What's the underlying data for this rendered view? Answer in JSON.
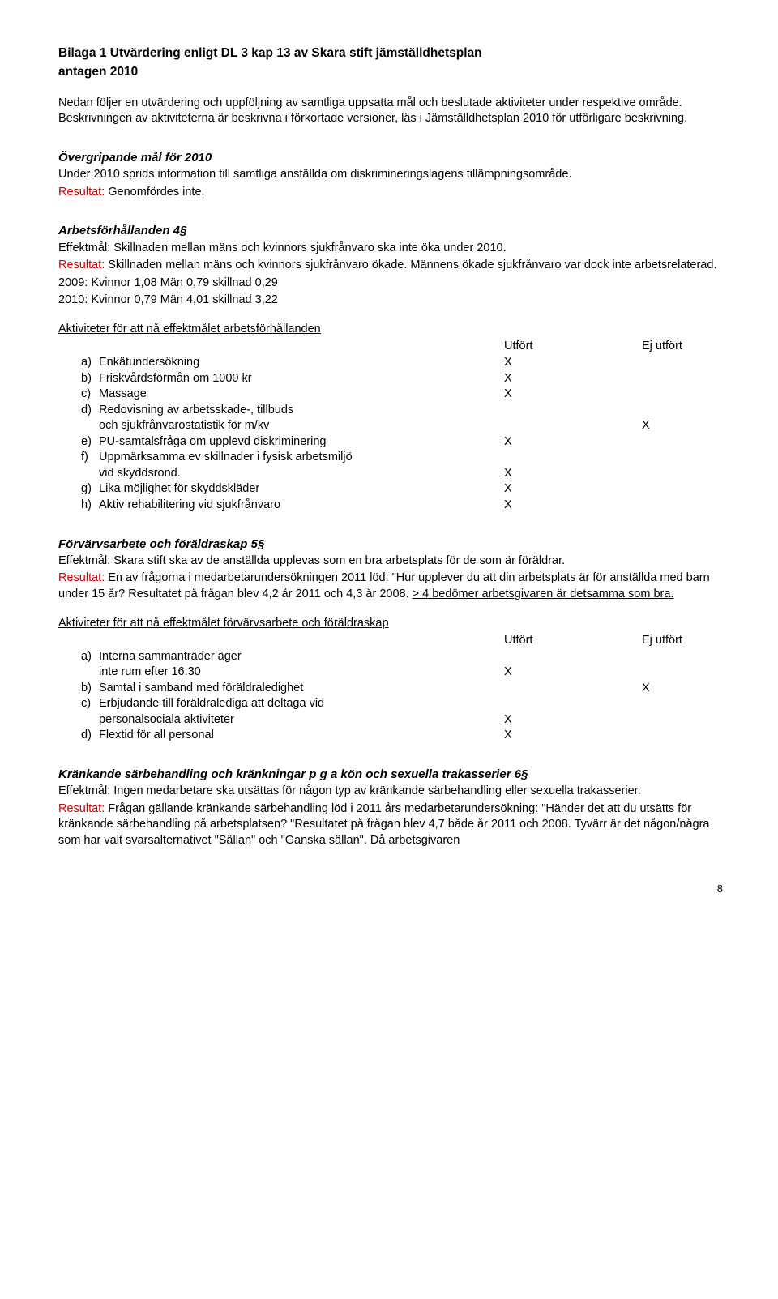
{
  "title_line1": "Bilaga 1 Utvärdering enligt DL 3 kap 13 av Skara stift jämställdhetsplan",
  "title_line2": "antagen 2010",
  "intro": "Nedan följer en utvärdering och uppföljning av samtliga uppsatta mål och beslutade aktiviteter under respektive område. Beskrivningen av aktiviteterna är beskrivna i förkortade versioner, läs i Jämställdhetsplan 2010 för utförligare beskrivning.",
  "s_over": {
    "head": "Övergripande mål för 2010",
    "body": "Under 2010 sprids information till samtliga anställda om diskrimineringslagens tillämpningsområde.",
    "res_label": "Resultat:",
    "res_text": " Genomfördes inte."
  },
  "s4": {
    "head": "Arbetsförhållanden 4§",
    "eff": "Effektmål: Skillnaden mellan mäns och kvinnors sjukfrånvaro ska inte öka under 2010.",
    "res_label": "Resultat:",
    "res_text": " Skillnaden mellan mäns och kvinnors sjukfrånvaro ökade. Männens ökade sjukfrånvaro var dock inte arbetsrelaterad.",
    "stat1": "2009: Kvinnor 1,08 Män 0,79 skillnad 0,29",
    "stat2": "2010: Kvinnor 0,79 Män 4,01 skillnad 3,22",
    "act_head": "Aktiviteter för att nå effektmålet arbetsförhållanden",
    "col1": "Utfört",
    "col2": "Ej utfört",
    "items": [
      {
        "l": "a)",
        "t": "Enkätundersökning",
        "x": "X",
        "y": ""
      },
      {
        "l": "b)",
        "t": "Friskvårdsförmån om 1000 kr",
        "x": "X",
        "y": ""
      },
      {
        "l": "c)",
        "t": "Massage",
        "x": "X",
        "y": ""
      },
      {
        "l": "d)",
        "t": "Redovisning av arbetsskade-, tillbuds\noch sjukfrånvarostatistik för m/kv",
        "x": "",
        "y": "X"
      },
      {
        "l": "e)",
        "t": "PU-samtalsfråga om upplevd diskriminering",
        "x": "X",
        "y": ""
      },
      {
        "l": "f)",
        "t": "Uppmärksamma ev skillnader i fysisk arbetsmiljö\nvid skyddsrond.",
        "x": "X",
        "y": ""
      },
      {
        "l": "g)",
        "t": "Lika möjlighet för skyddskläder",
        "x": "X",
        "y": ""
      },
      {
        "l": "h)",
        "t": "Aktiv rehabilitering vid sjukfrånvaro",
        "x": "X",
        "y": ""
      }
    ]
  },
  "s5": {
    "head": "Förvärvsarbete och föräldraskap 5§",
    "eff": "Effektmål: Skara stift ska av de anställda upplevas som en bra arbetsplats för de som är föräldrar.",
    "res_label": "Resultat:",
    "res_text": " En av frågorna i medarbetarundersökningen 2011 löd: \"Hur upplever du att din arbetsplats är för anställda med barn under 15 år? Resultatet på frågan blev 4,2 år 2011 och 4,3 år 2008. ",
    "res_u": "> 4 bedömer arbetsgivaren är detsamma som bra.",
    "act_head": "Aktiviteter för att nå effektmålet förvärvsarbete och föräldraskap",
    "col1": "Utfört",
    "col2": "Ej utfört",
    "items": [
      {
        "l": "a)",
        "t": "Interna sammanträder äger\ninte rum efter 16.30",
        "x": "X",
        "y": ""
      },
      {
        "l": "b)",
        "t": "Samtal i samband med föräldraledighet",
        "x": "",
        "y": "X"
      },
      {
        "l": "c)",
        "t": "Erbjudande till föräldralediga att deltaga vid\npersonalsociala aktiviteter",
        "x": "X",
        "y": ""
      },
      {
        "l": "d)",
        "t": "Flextid för all personal",
        "x": "X",
        "y": ""
      }
    ]
  },
  "s6": {
    "head": "Kränkande särbehandling och kränkningar p g a kön och sexuella trakasserier 6§",
    "eff": "Effektmål: Ingen medarbetare ska utsättas för någon typ av kränkande särbehandling eller sexuella trakasserier.",
    "res_label": "Resultat:",
    "res_text": " Frågan gällande kränkande särbehandling löd i 2011 års medarbetarundersökning: \"Händer det att du utsätts för kränkande särbehandling på arbetsplatsen? \"Resultatet på frågan blev 4,7 både år 2011 och 2008. Tyvärr är det någon/några som har valt svarsalternativet \"Sällan\" och \"Ganska sällan\". Då arbetsgivaren"
  },
  "page": "8"
}
